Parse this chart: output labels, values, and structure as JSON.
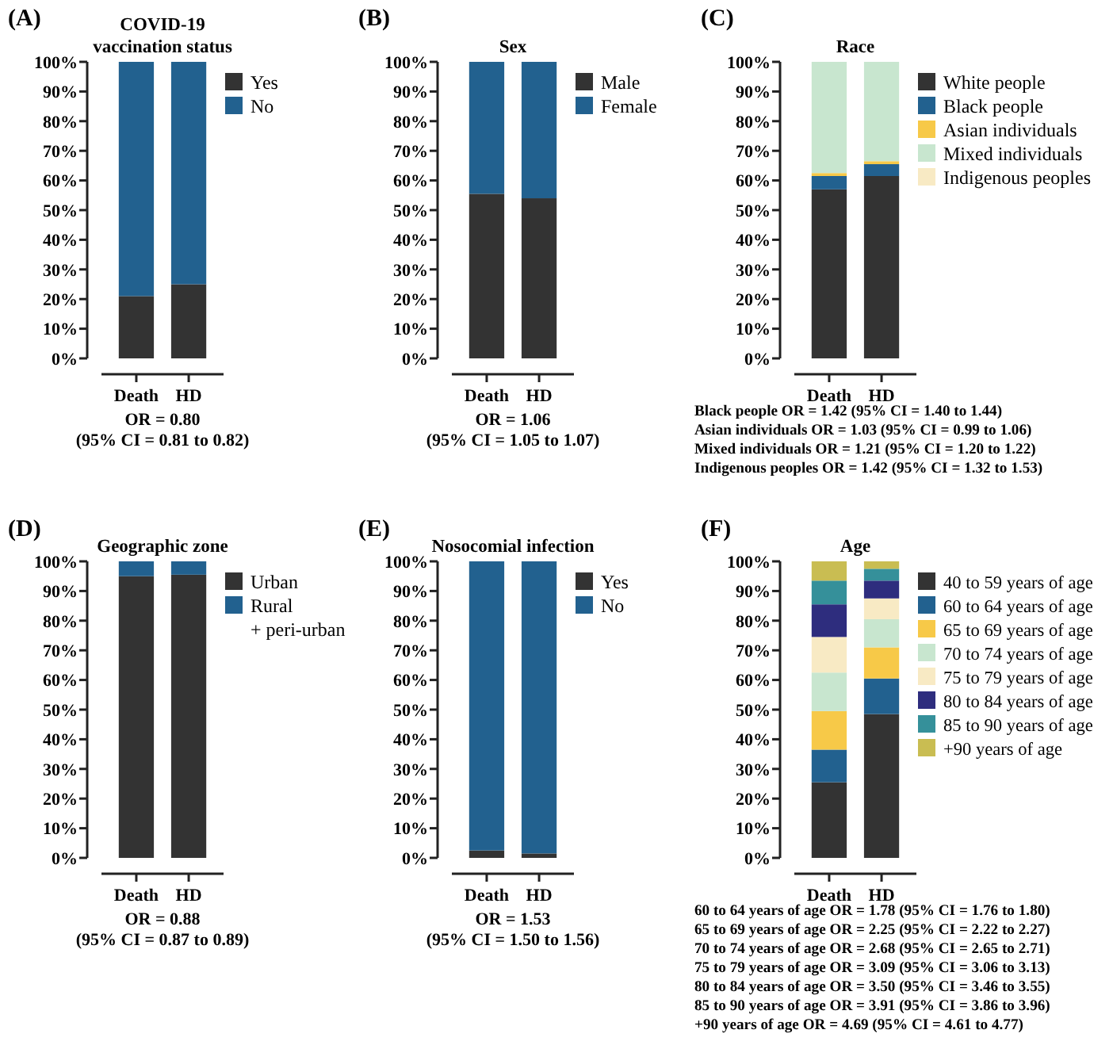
{
  "chart_data": [
    {
      "type": "bar",
      "title": "COVID-19\nvaccination status",
      "categories": [
        "Death",
        "HD"
      ],
      "stacked": true,
      "legend": "right",
      "series": [
        {
          "name": "Yes",
          "color": "#333333",
          "values": [
            21,
            25
          ]
        },
        {
          "name": "No",
          "color": "#22618f",
          "values": [
            79,
            75
          ]
        }
      ],
      "ylim": [
        0,
        100
      ],
      "yticks": [
        {
          "value": 0,
          "label": "0%"
        },
        {
          "value": 10,
          "label": "10%"
        },
        {
          "value": 20,
          "label": "20%"
        },
        {
          "value": 30,
          "label": "30%"
        },
        {
          "value": 40,
          "label": "40%"
        },
        {
          "value": 50,
          "label": "50%"
        },
        {
          "value": 60,
          "label": "60%"
        },
        {
          "value": 70,
          "label": "70%"
        },
        {
          "value": 80,
          "label": "80%"
        },
        {
          "value": 90,
          "label": "90%"
        },
        {
          "value": 100,
          "label": "100%"
        }
      ],
      "annotations": [
        "(A)",
        "OR = 0.80",
        "(95% CI = 0.81 to 0.82)"
      ]
    },
    {
      "type": "bar",
      "title": "Sex",
      "categories": [
        "Death",
        "HD"
      ],
      "stacked": true,
      "legend": "right",
      "series": [
        {
          "name": "Male",
          "color": "#333333",
          "values": [
            55.5,
            54
          ]
        },
        {
          "name": "Female",
          "color": "#22618f",
          "values": [
            44.5,
            46
          ]
        }
      ],
      "ylim": [
        0,
        100
      ],
      "yticks": [
        {
          "value": 0,
          "label": "0%"
        },
        {
          "value": 10,
          "label": "10%"
        },
        {
          "value": 20,
          "label": "20%"
        },
        {
          "value": 30,
          "label": "30%"
        },
        {
          "value": 40,
          "label": "40%"
        },
        {
          "value": 50,
          "label": "50%"
        },
        {
          "value": 60,
          "label": "60%"
        },
        {
          "value": 70,
          "label": "70%"
        },
        {
          "value": 80,
          "label": "80%"
        },
        {
          "value": 90,
          "label": "90%"
        },
        {
          "value": 100,
          "label": "100%"
        }
      ],
      "annotations": [
        "(B)",
        "OR = 1.06",
        "(95% CI = 1.05 to 1.07)"
      ]
    },
    {
      "type": "bar",
      "title": "Race",
      "categories": [
        "Death",
        "HD"
      ],
      "stacked": true,
      "legend": "right",
      "series": [
        {
          "name": "White people",
          "color": "#333333",
          "values": [
            57,
            61.5
          ]
        },
        {
          "name": "Black people",
          "color": "#22618f",
          "values": [
            4.5,
            4
          ]
        },
        {
          "name": "Asian individuals",
          "color": "#f7c948",
          "values": [
            1,
            1
          ]
        },
        {
          "name": "Mixed individuals",
          "color": "#c8e6cf",
          "values": [
            37.5,
            33.5
          ]
        },
        {
          "name": "Indigenous peoples",
          "color": "#f8eac4",
          "values": [
            null,
            null
          ]
        }
      ],
      "ylim": [
        0,
        100
      ],
      "yticks": [
        {
          "value": 0,
          "label": "0%"
        },
        {
          "value": 10,
          "label": "10%"
        },
        {
          "value": 20,
          "label": "20%"
        },
        {
          "value": 30,
          "label": "30%"
        },
        {
          "value": 40,
          "label": "40%"
        },
        {
          "value": 50,
          "label": "50%"
        },
        {
          "value": 60,
          "label": "60%"
        },
        {
          "value": 70,
          "label": "70%"
        },
        {
          "value": 80,
          "label": "80%"
        },
        {
          "value": 90,
          "label": "90%"
        },
        {
          "value": 100,
          "label": "100%"
        }
      ],
      "annotations": [
        "(C)",
        "Black people OR = 1.42 (95% CI = 1.40 to 1.44)",
        "Asian individuals OR = 1.03 (95% CI = 0.99 to 1.06)",
        "Mixed individuals OR = 1.21 (95% CI = 1.20 to 1.22)",
        "Indigenous peoples OR = 1.42 (95% CI = 1.32 to 1.53)"
      ]
    },
    {
      "type": "bar",
      "title": "Geographic zone",
      "categories": [
        "Death",
        "HD"
      ],
      "stacked": true,
      "legend": "right",
      "series": [
        {
          "name": "Urban",
          "color": "#333333",
          "values": [
            95,
            95.5
          ]
        },
        {
          "name": "Rural\n+ peri-urban",
          "color": "#22618f",
          "values": [
            5,
            4.5
          ]
        }
      ],
      "ylim": [
        0,
        100
      ],
      "yticks": [
        {
          "value": 0,
          "label": "0%"
        },
        {
          "value": 10,
          "label": "10%"
        },
        {
          "value": 20,
          "label": "20%"
        },
        {
          "value": 30,
          "label": "30%"
        },
        {
          "value": 40,
          "label": "40%"
        },
        {
          "value": 50,
          "label": "50%"
        },
        {
          "value": 60,
          "label": "60%"
        },
        {
          "value": 70,
          "label": "70%"
        },
        {
          "value": 80,
          "label": "80%"
        },
        {
          "value": 90,
          "label": "90%"
        },
        {
          "value": 100,
          "label": "100%"
        }
      ],
      "annotations": [
        "(D)",
        "OR = 0.88",
        "(95% CI = 0.87 to 0.89)"
      ]
    },
    {
      "type": "bar",
      "title": "Nosocomial infection",
      "categories": [
        "Death",
        "HD"
      ],
      "stacked": true,
      "legend": "right",
      "series": [
        {
          "name": "Yes",
          "color": "#333333",
          "values": [
            2.5,
            1.5
          ]
        },
        {
          "name": "No",
          "color": "#22618f",
          "values": [
            97.5,
            98.5
          ]
        }
      ],
      "ylim": [
        0,
        100
      ],
      "yticks": [
        {
          "value": 0,
          "label": "0%"
        },
        {
          "value": 10,
          "label": "10%"
        },
        {
          "value": 20,
          "label": "20%"
        },
        {
          "value": 30,
          "label": "30%"
        },
        {
          "value": 40,
          "label": "40%"
        },
        {
          "value": 50,
          "label": "50%"
        },
        {
          "value": 60,
          "label": "60%"
        },
        {
          "value": 70,
          "label": "70%"
        },
        {
          "value": 80,
          "label": "80%"
        },
        {
          "value": 90,
          "label": "90%"
        },
        {
          "value": 100,
          "label": "100%"
        }
      ],
      "annotations": [
        "(E)",
        "OR = 1.53",
        "(95% CI = 1.50 to 1.56)"
      ]
    },
    {
      "type": "bar",
      "title": "Age",
      "categories": [
        "Death",
        "HD"
      ],
      "stacked": true,
      "legend": "right",
      "series": [
        {
          "name": "40 to 59 years of age",
          "color": "#333333",
          "values": [
            25.5,
            48.5
          ]
        },
        {
          "name": "60 to 64 years of age",
          "color": "#22618f",
          "values": [
            11,
            12
          ]
        },
        {
          "name": "65 to 69 years of age",
          "color": "#f7c948",
          "values": [
            13,
            10.5
          ]
        },
        {
          "name": "70 to 74 years of age",
          "color": "#c8e6cf",
          "values": [
            13,
            9.5
          ]
        },
        {
          "name": "75 to 79 years of age",
          "color": "#f8eac4",
          "values": [
            12,
            7
          ]
        },
        {
          "name": "80 to 84 years of age",
          "color": "#2e2d7e",
          "values": [
            11,
            6
          ]
        },
        {
          "name": "85 to 90 years of age",
          "color": "#35909a",
          "values": [
            8,
            4
          ]
        },
        {
          "name": "+90 years of age",
          "color": "#c9bd52",
          "values": [
            6.5,
            2.5
          ]
        }
      ],
      "ylim": [
        0,
        100
      ],
      "yticks": [
        {
          "value": 0,
          "label": "0%"
        },
        {
          "value": 10,
          "label": "10%"
        },
        {
          "value": 20,
          "label": "20%"
        },
        {
          "value": 30,
          "label": "30%"
        },
        {
          "value": 40,
          "label": "40%"
        },
        {
          "value": 50,
          "label": "50%"
        },
        {
          "value": 60,
          "label": "60%"
        },
        {
          "value": 70,
          "label": "70%"
        },
        {
          "value": 80,
          "label": "80%"
        },
        {
          "value": 90,
          "label": "90%"
        },
        {
          "value": 100,
          "label": "100%"
        }
      ],
      "annotations": [
        "(F)",
        "60 to 64 years of age OR = 1.78 (95% CI = 1.76 to 1.80)",
        "65 to 69 years of age OR = 2.25 (95% CI = 2.22 to 2.27)",
        "70 to 74 years of age OR = 2.68 (95% CI = 2.65 to 2.71)",
        "75 to 79 years of age OR = 3.09 (95% CI = 3.06 to 3.13)",
        "80 to 84 years of age OR = 3.50 (95% CI = 3.46 to 3.55)",
        "85 to 90 years of age OR = 3.91 (95% CI = 3.86 to 3.96)",
        "+90 years of age OR = 4.69 (95% CI = 4.61 to 4.77)"
      ]
    }
  ]
}
